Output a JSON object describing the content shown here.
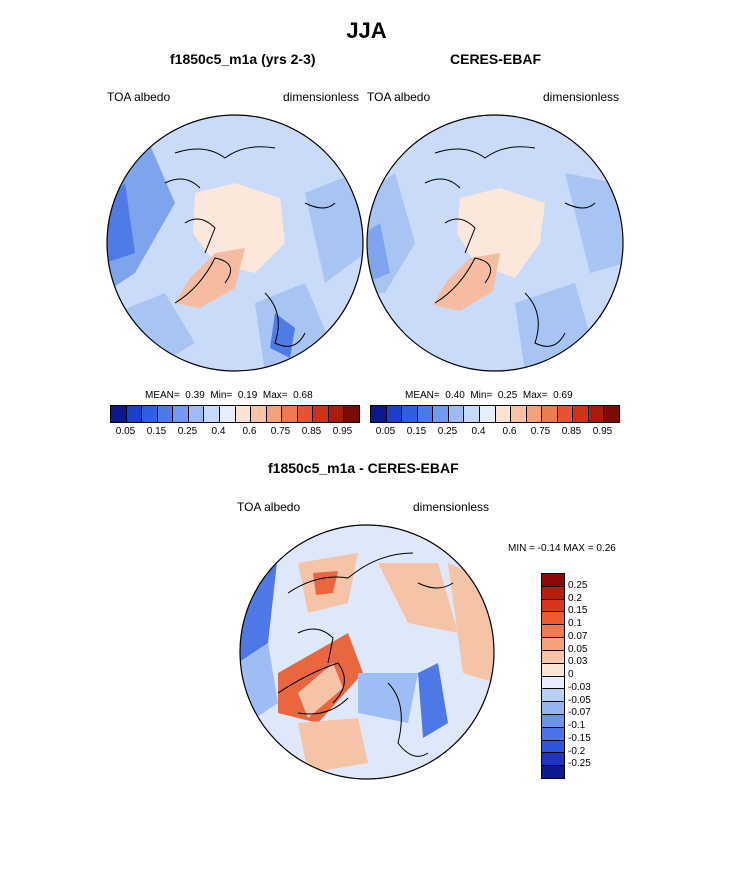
{
  "title": "JJA",
  "panels": [
    {
      "title": "f1850c5_m1a (yrs 2-3)",
      "left_label": "TOA albedo",
      "right_label": "dimensionless",
      "mean_label": "MEAN=",
      "mean": "0.39",
      "min_label": "Min=",
      "min": "0.19",
      "max_label": "Max=",
      "max": "0.68"
    },
    {
      "title": "CERES-EBAF",
      "left_label": "TOA albedo",
      "right_label": "dimensionless",
      "mean_label": "MEAN=",
      "mean": "0.40",
      "min_label": "Min=",
      "min": "0.25",
      "max_label": "Max=",
      "max": "0.69"
    }
  ],
  "abs_colorbar": {
    "colors": [
      "#0a1a8c",
      "#1d3fc9",
      "#2f5fe0",
      "#4a7be8",
      "#6f9bf0",
      "#9dbcf5",
      "#c6d9fa",
      "#e6eefc",
      "#fbe3d2",
      "#f9c3a3",
      "#f4a07a",
      "#ee7a52",
      "#e35532",
      "#cc3418",
      "#a81c0c",
      "#7a0b05"
    ],
    "ticks": [
      "0.05",
      "0.15",
      "0.25",
      "0.4",
      "0.6",
      "0.75",
      "0.85",
      "0.95"
    ]
  },
  "diff_panel": {
    "title": "f1850c5_m1a - CERES-EBAF",
    "left_label": "TOA albedo",
    "right_label": "dimensionless",
    "minmax_label": "MIN =  -0.14 MAX =   0.26"
  },
  "diff_colorbar": {
    "colors": [
      "#8b0a08",
      "#b5200d",
      "#d8361a",
      "#ee5a30",
      "#f27a4f",
      "#f4a27c",
      "#f7c6a8",
      "#fbe6d6",
      "#e8eefb",
      "#b9cff7",
      "#94b5f2",
      "#6e95ee",
      "#4a74e8",
      "#2f55dd",
      "#1c36c2",
      "#0c1a8c"
    ],
    "labels": [
      "0.25",
      "0.2",
      "0.15",
      "0.1",
      "0.07",
      "0.05",
      "0.03",
      "0",
      "-0.03",
      "-0.05",
      "-0.07",
      "-0.1",
      "-0.15",
      "-0.2",
      "-0.25"
    ]
  },
  "map_colors": {
    "ocean_light": "#c9dbf8",
    "ocean_mid": "#a8c4f2",
    "blue_mid": "#7ea4ee",
    "blue_dark": "#4f7be6",
    "ice": "#fbe8da",
    "greenland": "#f5bca2",
    "diff_neutral": "#dfe8fa",
    "diff_pos": "#f5c3a5",
    "diff_pos_strong": "#e9663e",
    "diff_neg": "#9ebdf4",
    "diff_neg_strong": "#4d78e6"
  }
}
